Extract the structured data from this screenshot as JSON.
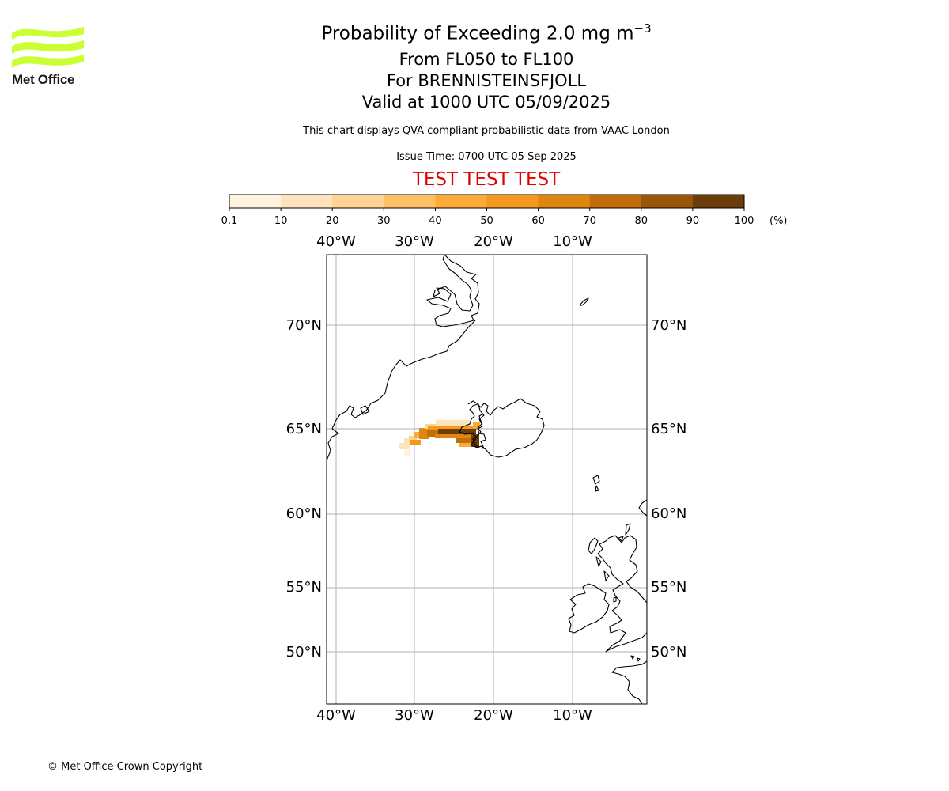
{
  "header": {
    "title": "Probability of Exceeding 2.0 mg m",
    "title_exponent": "−3",
    "level_range": "From FL050 to FL100",
    "volcano": "For BRENNISTEINSFJOLL",
    "valid_time": "Valid at 1000 UTC 05/09/2025",
    "description": "This chart displays QVA compliant probabilistic data from VAAC London",
    "issue_time": "Issue Time: 0700 UTC 05 Sep 2025",
    "test_banner": "TEST TEST TEST"
  },
  "logo": {
    "text": "Met Office",
    "color": "#ccff33"
  },
  "colorbar": {
    "ticks": [
      "0.1",
      "10",
      "20",
      "30",
      "40",
      "50",
      "60",
      "70",
      "80",
      "90",
      "100"
    ],
    "unit": "(%)",
    "colors": [
      "#fff3e0",
      "#ffe3bd",
      "#ffd395",
      "#ffbf63",
      "#fdab38",
      "#f5981c",
      "#df860f",
      "#c06d0a",
      "#9a5507",
      "#6b3d0a"
    ]
  },
  "map": {
    "lon_labels": [
      "40°W",
      "30°W",
      "20°W",
      "10°W"
    ],
    "lat_labels": [
      "70°N",
      "65°N",
      "60°N",
      "55°N",
      "50°N"
    ],
    "grid_color": "#b0b0b0",
    "coastline_color": "#000000"
  },
  "footer": {
    "copyright": "© Met Office Crown Copyright"
  }
}
